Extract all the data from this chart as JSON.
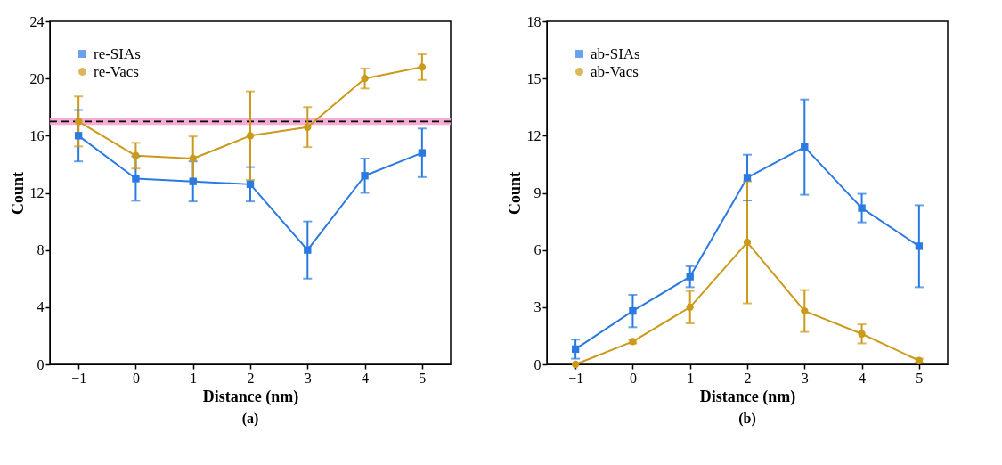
{
  "chart_data": [
    {
      "type": "line",
      "title": "(a)",
      "xlabel": "Distance (nm)",
      "ylabel": "Count",
      "x": [
        -1,
        0,
        1,
        2,
        3,
        4,
        5
      ],
      "xlim": [
        -1.5,
        5.5
      ],
      "xticks": [
        -1,
        0,
        1,
        2,
        3,
        4,
        5
      ],
      "ylim": [
        0,
        24
      ],
      "yticks": [
        0,
        4,
        8,
        12,
        16,
        20,
        24
      ],
      "grid": false,
      "legend": "top left",
      "series": [
        {
          "name": "re-SIAs",
          "color": "#2a7ae2",
          "marker": "square",
          "values": [
            16.0,
            13.0,
            12.8,
            12.6,
            8.0,
            13.2,
            14.8
          ],
          "errors": [
            1.8,
            1.55,
            1.4,
            1.2,
            2.0,
            1.2,
            1.7
          ]
        },
        {
          "name": "re-Vacs",
          "color": "#cc9a1a",
          "marker": "circle",
          "values": [
            17.0,
            14.6,
            14.4,
            16.0,
            16.6,
            20.0,
            20.8
          ],
          "errors": [
            1.75,
            0.9,
            1.55,
            3.1,
            1.4,
            0.7,
            0.9
          ]
        }
      ],
      "ref_lines": [
        {
          "axis": "y",
          "value": 17,
          "color": "#000000",
          "line_style": "dashed"
        }
      ],
      "bands": [
        {
          "axis": "y",
          "from": 16.75,
          "to": 17.25,
          "color": "#f5a3cf"
        }
      ]
    },
    {
      "type": "line",
      "title": "(b)",
      "xlabel": "Distance (nm)",
      "ylabel": "Count",
      "x": [
        -1,
        0,
        1,
        2,
        3,
        4,
        5
      ],
      "xlim": [
        -1.5,
        5.5
      ],
      "xticks": [
        -1,
        0,
        1,
        2,
        3,
        4,
        5
      ],
      "ylim": [
        0,
        18
      ],
      "yticks": [
        0,
        3,
        6,
        9,
        12,
        15,
        18
      ],
      "grid": false,
      "legend": "top left",
      "series": [
        {
          "name": "ab-SIAs",
          "color": "#2a7ae2",
          "marker": "square",
          "values": [
            0.8,
            2.8,
            4.6,
            9.8,
            11.4,
            8.2,
            6.2
          ],
          "errors": [
            0.5,
            0.85,
            0.55,
            1.2,
            2.5,
            0.75,
            2.15
          ]
        },
        {
          "name": "ab-Vacs",
          "color": "#cc9a1a",
          "marker": "circle",
          "values": [
            0.0,
            1.2,
            3.0,
            6.4,
            2.8,
            1.6,
            0.2
          ],
          "errors": [
            null,
            0.1,
            0.85,
            3.2,
            1.1,
            0.5,
            0.1
          ]
        }
      ]
    }
  ]
}
